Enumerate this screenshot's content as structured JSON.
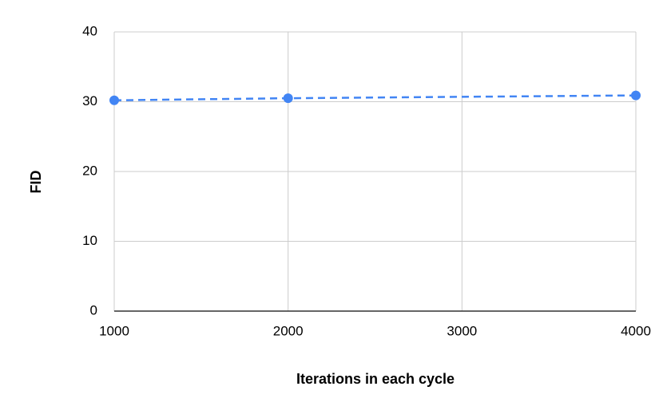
{
  "chart_data": {
    "type": "line",
    "title": "",
    "xlabel": "Iterations in each cycle",
    "ylabel": "FID",
    "x": [
      1000,
      2000,
      4000
    ],
    "series": [
      {
        "values": [
          30.2,
          30.5,
          30.9
        ],
        "color": "#4285F4",
        "line_style": "dashed",
        "markers": true
      }
    ],
    "xlim": [
      1000,
      4000
    ],
    "ylim": [
      0,
      40
    ],
    "x_ticks": [
      1000,
      2000,
      3000,
      4000
    ],
    "y_ticks": [
      0,
      10,
      20,
      30,
      40
    ],
    "x_tick_labels": [
      "1000",
      "2000",
      "3000",
      "4000"
    ],
    "y_tick_labels": [
      "0",
      "10",
      "20",
      "30",
      "40"
    ],
    "grid": true,
    "legend": "none",
    "colors": {
      "grid": "#cccccc",
      "axis": "#333333",
      "text": "#000000"
    }
  }
}
